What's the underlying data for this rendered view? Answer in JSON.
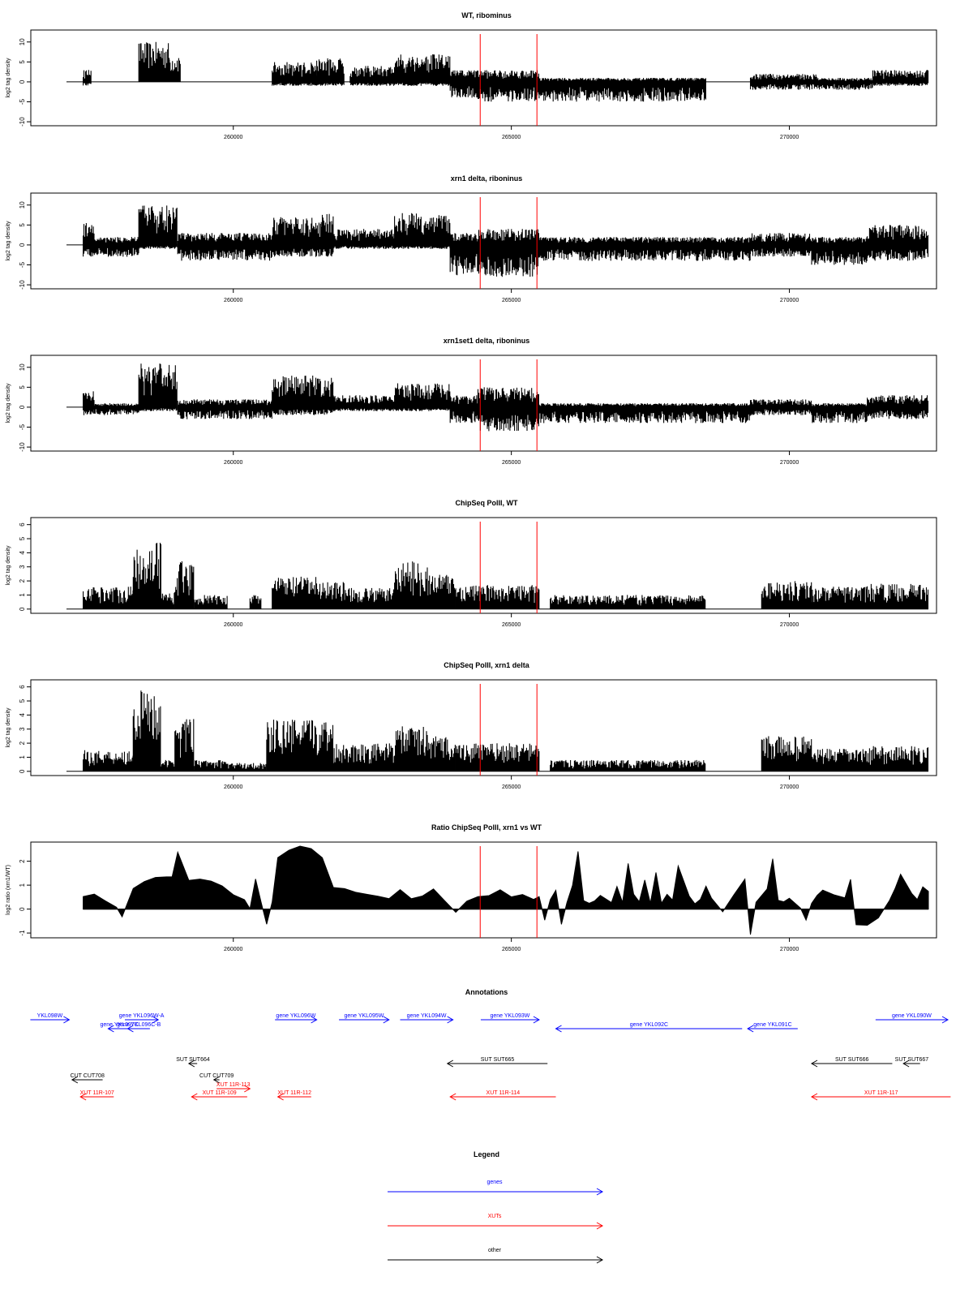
{
  "chart_data": [
    {
      "type": "bar",
      "title": "WT, ribominus",
      "ylabel": "log2 tag density",
      "ylim": [
        -11,
        13
      ],
      "yticks": [
        10,
        5,
        0,
        -5,
        -10
      ],
      "xlim": [
        257000,
        272500
      ],
      "xticks": [
        260000,
        265000,
        270000
      ],
      "xtick_labels": [
        "260000",
        "265000",
        "270000"
      ],
      "markers": [
        264440,
        265460
      ],
      "segments": [
        {
          "x0": 257300,
          "x1": 257450,
          "pos": 3,
          "neg": -1
        },
        {
          "x0": 258300,
          "x1": 258850,
          "pos": 10,
          "neg": 0
        },
        {
          "x0": 258850,
          "x1": 259050,
          "pos": 7,
          "neg": 0
        },
        {
          "x0": 260700,
          "x1": 261500,
          "pos": 5,
          "neg": -1
        },
        {
          "x0": 261500,
          "x1": 262000,
          "pos": 6,
          "neg": -1
        },
        {
          "x0": 262100,
          "x1": 262900,
          "pos": 4,
          "neg": -1
        },
        {
          "x0": 262900,
          "x1": 263900,
          "pos": 7,
          "neg": -1
        },
        {
          "x0": 263900,
          "x1": 264400,
          "pos": 3,
          "neg": -4
        },
        {
          "x0": 264400,
          "x1": 265500,
          "pos": 3,
          "neg": -5
        },
        {
          "x0": 265500,
          "x1": 268500,
          "pos": 1,
          "neg": -5
        },
        {
          "x0": 269300,
          "x1": 270500,
          "pos": 2,
          "neg": -2
        },
        {
          "x0": 270500,
          "x1": 271500,
          "pos": 1,
          "neg": -2
        },
        {
          "x0": 271500,
          "x1": 272500,
          "pos": 3,
          "neg": -1
        }
      ]
    },
    {
      "type": "bar",
      "title": "xrn1 delta, riboninus",
      "ylabel": "log2 tag density",
      "ylim": [
        -11,
        13
      ],
      "yticks": [
        10,
        5,
        0,
        -5,
        -10
      ],
      "xlim": [
        257000,
        272500
      ],
      "xticks": [
        260000,
        265000,
        270000
      ],
      "xtick_labels": [
        "260000",
        "265000",
        "270000"
      ],
      "markers": [
        264440,
        265460
      ],
      "segments": [
        {
          "x0": 257300,
          "x1": 257500,
          "pos": 6,
          "neg": -3
        },
        {
          "x0": 257500,
          "x1": 258300,
          "pos": 2,
          "neg": -3
        },
        {
          "x0": 258300,
          "x1": 259000,
          "pos": 10,
          "neg": -1
        },
        {
          "x0": 259000,
          "x1": 260700,
          "pos": 3,
          "neg": -4
        },
        {
          "x0": 260700,
          "x1": 261600,
          "pos": 7,
          "neg": -3
        },
        {
          "x0": 261600,
          "x1": 261800,
          "pos": 8,
          "neg": -3
        },
        {
          "x0": 261800,
          "x1": 262900,
          "pos": 4,
          "neg": -1
        },
        {
          "x0": 262900,
          "x1": 263900,
          "pos": 8,
          "neg": -1
        },
        {
          "x0": 263900,
          "x1": 264400,
          "pos": 3,
          "neg": -8
        },
        {
          "x0": 264400,
          "x1": 265500,
          "pos": 4,
          "neg": -8
        },
        {
          "x0": 265500,
          "x1": 269300,
          "pos": 2,
          "neg": -4
        },
        {
          "x0": 269300,
          "x1": 270400,
          "pos": 3,
          "neg": -3
        },
        {
          "x0": 270400,
          "x1": 271400,
          "pos": 2,
          "neg": -5
        },
        {
          "x0": 271400,
          "x1": 272500,
          "pos": 5,
          "neg": -4
        }
      ]
    },
    {
      "type": "bar",
      "title": "xrn1set1 delta, riboninus",
      "ylabel": "log2 tag density",
      "ylim": [
        -11,
        13
      ],
      "yticks": [
        10,
        5,
        0,
        -5,
        -10
      ],
      "xlim": [
        257000,
        272500
      ],
      "xticks": [
        260000,
        265000,
        270000
      ],
      "xtick_labels": [
        "260000",
        "265000",
        "270000"
      ],
      "markers": [
        264440,
        265460
      ],
      "segments": [
        {
          "x0": 257300,
          "x1": 257500,
          "pos": 4,
          "neg": -2
        },
        {
          "x0": 257500,
          "x1": 258300,
          "pos": 1,
          "neg": -2
        },
        {
          "x0": 258300,
          "x1": 259000,
          "pos": 11,
          "neg": -1
        },
        {
          "x0": 259000,
          "x1": 260700,
          "pos": 2,
          "neg": -3
        },
        {
          "x0": 260700,
          "x1": 261800,
          "pos": 8,
          "neg": -2
        },
        {
          "x0": 261800,
          "x1": 262900,
          "pos": 3,
          "neg": -1
        },
        {
          "x0": 262900,
          "x1": 263900,
          "pos": 6,
          "neg": -1
        },
        {
          "x0": 263900,
          "x1": 264400,
          "pos": 3,
          "neg": -4
        },
        {
          "x0": 264400,
          "x1": 265500,
          "pos": 5,
          "neg": -6
        },
        {
          "x0": 265500,
          "x1": 269300,
          "pos": 1,
          "neg": -4
        },
        {
          "x0": 269300,
          "x1": 270400,
          "pos": 2,
          "neg": -2
        },
        {
          "x0": 270400,
          "x1": 271400,
          "pos": 1,
          "neg": -4
        },
        {
          "x0": 271400,
          "x1": 272500,
          "pos": 3,
          "neg": -3
        }
      ]
    },
    {
      "type": "bar",
      "title": "ChipSeq PolII, WT",
      "ylabel": "log2 tag density",
      "ylim": [
        -0.3,
        6.5
      ],
      "yticks": [
        0,
        1,
        2,
        3,
        4,
        5,
        6
      ],
      "xlim": [
        257000,
        272500
      ],
      "xticks": [
        260000,
        265000,
        270000
      ],
      "xtick_labels": [
        "260000",
        "265000",
        "270000"
      ],
      "markers": [
        264440,
        265460
      ],
      "segments": [
        {
          "x0": 257300,
          "x1": 258200,
          "pos": 1.6,
          "neg": 0
        },
        {
          "x0": 258200,
          "x1": 258600,
          "pos": 4.5,
          "neg": 0
        },
        {
          "x0": 258600,
          "x1": 258700,
          "pos": 5.0,
          "neg": 0
        },
        {
          "x0": 258700,
          "x1": 258950,
          "pos": 1.2,
          "neg": 0
        },
        {
          "x0": 258950,
          "x1": 259300,
          "pos": 3.4,
          "neg": 0
        },
        {
          "x0": 259300,
          "x1": 259900,
          "pos": 1.0,
          "neg": 0
        },
        {
          "x0": 260300,
          "x1": 260500,
          "pos": 1.0,
          "neg": 0
        },
        {
          "x0": 260700,
          "x1": 261500,
          "pos": 2.3,
          "neg": 0
        },
        {
          "x0": 261500,
          "x1": 262000,
          "pos": 2.0,
          "neg": 0
        },
        {
          "x0": 262000,
          "x1": 262900,
          "pos": 1.5,
          "neg": 0
        },
        {
          "x0": 262900,
          "x1": 263500,
          "pos": 3.4,
          "neg": 0
        },
        {
          "x0": 263500,
          "x1": 264000,
          "pos": 2.5,
          "neg": 0
        },
        {
          "x0": 264000,
          "x1": 265500,
          "pos": 1.7,
          "neg": 0
        },
        {
          "x0": 265700,
          "x1": 268500,
          "pos": 1.0,
          "neg": 0
        },
        {
          "x0": 269500,
          "x1": 270400,
          "pos": 2.0,
          "neg": 0
        },
        {
          "x0": 270400,
          "x1": 271400,
          "pos": 1.6,
          "neg": 0
        },
        {
          "x0": 271400,
          "x1": 272500,
          "pos": 1.8,
          "neg": 0
        }
      ]
    },
    {
      "type": "bar",
      "title": "ChipSeq PolII, xrn1 delta",
      "ylabel": "log2 tag density",
      "ylim": [
        -0.3,
        6.5
      ],
      "yticks": [
        0,
        1,
        2,
        3,
        4,
        5,
        6
      ],
      "xlim": [
        257000,
        272500
      ],
      "xticks": [
        260000,
        265000,
        270000
      ],
      "xtick_labels": [
        "260000",
        "265000",
        "270000"
      ],
      "markers": [
        264440,
        265460
      ],
      "segments": [
        {
          "x0": 257300,
          "x1": 258200,
          "pos": 1.5,
          "neg": 0
        },
        {
          "x0": 258200,
          "x1": 258700,
          "pos": 5.8,
          "neg": 0
        },
        {
          "x0": 258700,
          "x1": 258950,
          "pos": 0.8,
          "neg": 0
        },
        {
          "x0": 258950,
          "x1": 259300,
          "pos": 3.8,
          "neg": 0
        },
        {
          "x0": 259300,
          "x1": 259900,
          "pos": 0.8,
          "neg": 0
        },
        {
          "x0": 259900,
          "x1": 260600,
          "pos": 0.6,
          "neg": 0
        },
        {
          "x0": 260600,
          "x1": 261800,
          "pos": 3.7,
          "neg": 0
        },
        {
          "x0": 261800,
          "x1": 262900,
          "pos": 2.0,
          "neg": 0
        },
        {
          "x0": 262900,
          "x1": 263500,
          "pos": 3.2,
          "neg": 0
        },
        {
          "x0": 263500,
          "x1": 264000,
          "pos": 2.5,
          "neg": 0
        },
        {
          "x0": 264000,
          "x1": 265500,
          "pos": 2.0,
          "neg": 0
        },
        {
          "x0": 265700,
          "x1": 268500,
          "pos": 0.8,
          "neg": 0
        },
        {
          "x0": 269500,
          "x1": 270400,
          "pos": 2.5,
          "neg": 0
        },
        {
          "x0": 270400,
          "x1": 271400,
          "pos": 1.6,
          "neg": 0
        },
        {
          "x0": 271400,
          "x1": 272500,
          "pos": 1.8,
          "neg": 0
        }
      ]
    },
    {
      "type": "area",
      "title": "Ratio ChipSeq PolII, xrn1 vs WT",
      "ylabel": "log2 ratio (xrn1/WT)",
      "ylim": [
        -1.2,
        2.8
      ],
      "yticks": [
        2,
        1,
        0,
        -1
      ],
      "xlim": [
        257000,
        272500
      ],
      "xticks": [
        260000,
        265000,
        270000
      ],
      "xtick_labels": [
        "260000",
        "265000",
        "270000"
      ],
      "markers": [
        264440,
        265460
      ],
      "x": [
        257300,
        257500,
        257700,
        257900,
        258000,
        258200,
        258400,
        258600,
        258800,
        258900,
        259000,
        259200,
        259400,
        259600,
        259800,
        260000,
        260200,
        260300,
        260400,
        260500,
        260600,
        260700,
        260800,
        261000,
        261200,
        261400,
        261600,
        261800,
        262000,
        262200,
        262400,
        262600,
        262800,
        263000,
        263200,
        263400,
        263600,
        263800,
        264000,
        264200,
        264400,
        264600,
        264800,
        265000,
        265200,
        265400,
        265500,
        265600,
        265700,
        265800,
        265900,
        266000,
        266100,
        266200,
        266300,
        266400,
        266500,
        266600,
        266800,
        266900,
        267000,
        267100,
        267200,
        267300,
        267400,
        267500,
        267600,
        267700,
        267800,
        267900,
        268000,
        268200,
        268300,
        268400,
        268500,
        268600,
        268800,
        269000,
        269200,
        269300,
        269400,
        269600,
        269700,
        269800,
        269900,
        270000,
        270200,
        270300,
        270400,
        270500,
        270600,
        270800,
        271000,
        271100,
        271200,
        271400,
        271600,
        271800,
        271900,
        272000,
        272200,
        272300,
        272400,
        272500
      ],
      "values": [
        0.5,
        0.6,
        0.3,
        0.1,
        -0.3,
        0.9,
        1.1,
        1.3,
        1.4,
        1.3,
        2.4,
        1.2,
        1.3,
        1.2,
        1.0,
        0.6,
        0.4,
        0.0,
        1.3,
        0.3,
        -0.6,
        0.3,
        2.2,
        2.4,
        2.6,
        2.5,
        2.2,
        0.9,
        0.8,
        0.7,
        0.6,
        0.5,
        0.4,
        0.8,
        0.4,
        0.5,
        0.9,
        0.4,
        -0.1,
        0.3,
        0.5,
        0.6,
        0.8,
        0.5,
        0.6,
        0.4,
        0.5,
        -0.5,
        0.4,
        0.8,
        -0.6,
        0.3,
        1.0,
        2.4,
        0.4,
        0.2,
        0.4,
        0.6,
        0.3,
        1.0,
        0.3,
        1.9,
        0.6,
        0.3,
        1.2,
        0.3,
        1.5,
        0.3,
        0.6,
        0.4,
        1.8,
        0.5,
        0.2,
        0.4,
        0.9,
        0.4,
        -0.1,
        0.6,
        1.2,
        -1.1,
        0.3,
        0.8,
        2.1,
        0.4,
        0.3,
        0.5,
        0.1,
        -0.4,
        0.2,
        0.6,
        0.8,
        0.6,
        0.5,
        1.2,
        -0.6,
        -0.7,
        -0.4,
        0.4,
        0.9,
        1.4,
        0.6,
        0.4,
        0.9,
        0.7
      ]
    }
  ],
  "annotations": {
    "title": "Annotations",
    "xlim": [
      257000,
      272500
    ],
    "features": [
      {
        "label": "YKL098W",
        "x0": 256350,
        "x1": 257050,
        "dir": "right",
        "kind": "gene",
        "row": 0
      },
      {
        "label": "gene YKL096W-A",
        "x0": 258050,
        "x1": 258650,
        "dir": "right",
        "kind": "gene",
        "row": 0
      },
      {
        "label": "gene YKL097C",
        "x0": 257750,
        "x1": 258150,
        "dir": "left",
        "kind": "gene",
        "row": 1
      },
      {
        "label": "gene YKL096C-B",
        "x0": 258100,
        "x1": 258500,
        "dir": "left",
        "kind": "gene",
        "row": 1
      },
      {
        "label": "gene YKL096W",
        "x0": 260750,
        "x1": 261500,
        "dir": "right",
        "kind": "gene",
        "row": 0
      },
      {
        "label": "gene YKL095W",
        "x0": 261900,
        "x1": 262800,
        "dir": "right",
        "kind": "gene",
        "row": 0
      },
      {
        "label": "gene YKL094W",
        "x0": 263000,
        "x1": 263950,
        "dir": "right",
        "kind": "gene",
        "row": 0
      },
      {
        "label": "gene YKL093W",
        "x0": 264450,
        "x1": 265500,
        "dir": "right",
        "kind": "gene",
        "row": 0
      },
      {
        "label": "gene YKL092C",
        "x0": 265800,
        "x1": 269150,
        "dir": "left",
        "kind": "gene",
        "row": 1
      },
      {
        "label": "gene YKL091C",
        "x0": 269250,
        "x1": 270150,
        "dir": "left",
        "kind": "gene",
        "row": 1
      },
      {
        "label": "gene YKL090W",
        "x0": 271550,
        "x1": 272850,
        "dir": "right",
        "kind": "gene",
        "row": 0
      },
      {
        "label": "SUT SUT664",
        "x0": 259200,
        "x1": 259350,
        "dir": "left",
        "kind": "other",
        "row": 3
      },
      {
        "label": "SUT SUT665",
        "x0": 263850,
        "x1": 265650,
        "dir": "left",
        "kind": "other",
        "row": 3
      },
      {
        "label": "SUT SUT666",
        "x0": 270400,
        "x1": 271850,
        "dir": "left",
        "kind": "other",
        "row": 3
      },
      {
        "label": "SUT SUT667",
        "x0": 272050,
        "x1": 272350,
        "dir": "left",
        "kind": "other",
        "row": 3
      },
      {
        "label": "CUT CUT708",
        "x0": 257100,
        "x1": 257650,
        "dir": "left",
        "kind": "other",
        "row": 4
      },
      {
        "label": "CUT CUT709",
        "x0": 259650,
        "x1": 259750,
        "dir": "left",
        "kind": "other",
        "row": 4
      },
      {
        "label": "XUT 11R-113",
        "x0": 259700,
        "x1": 260300,
        "dir": "right",
        "kind": "xut",
        "row": 5
      },
      {
        "label": "XUT 11R-107",
        "x0": 257250,
        "x1": 257850,
        "dir": "left",
        "kind": "xut",
        "row": 6
      },
      {
        "label": "XUT 11R-109",
        "x0": 259250,
        "x1": 260250,
        "dir": "left",
        "kind": "xut",
        "row": 6
      },
      {
        "label": "XUT 11R-112",
        "x0": 260800,
        "x1": 261400,
        "dir": "left",
        "kind": "xut",
        "row": 6
      },
      {
        "label": "XUT 11R-114",
        "x0": 263900,
        "x1": 265800,
        "dir": "left",
        "kind": "xut",
        "row": 6
      },
      {
        "label": "XUT 11R-117",
        "x0": 270400,
        "x1": 272900,
        "dir": "left",
        "kind": "xut",
        "row": 6
      }
    ]
  },
  "legend": {
    "title": "Legend",
    "items": [
      {
        "label": "genes",
        "color": "#0000ff",
        "kind": "gene"
      },
      {
        "label": "XUTs",
        "color": "#ff0000",
        "kind": "xut"
      },
      {
        "label": "other",
        "color": "#000000",
        "kind": "other"
      }
    ]
  },
  "colors": {
    "gene": "#0000ff",
    "xut": "#ff0000",
    "other": "#000000",
    "marker": "#ff0000"
  }
}
